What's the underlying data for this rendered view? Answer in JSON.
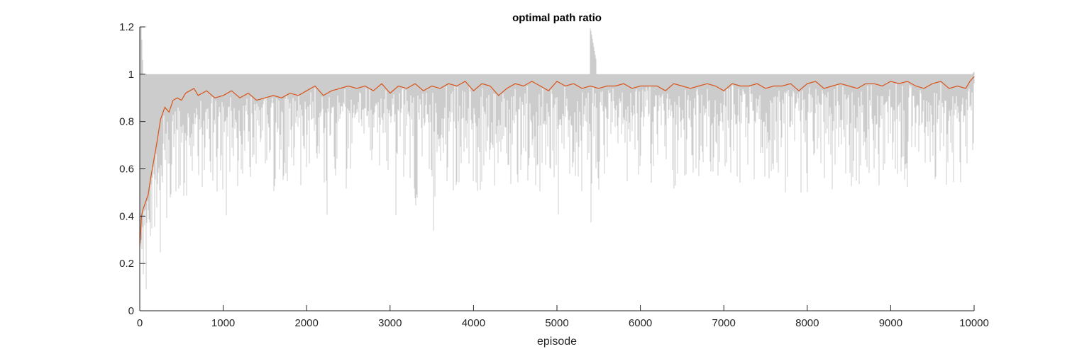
{
  "chart_data": {
    "type": "line",
    "title": "optimal path ratio",
    "xlabel": "episode",
    "ylabel": "",
    "xlim": [
      0,
      10000
    ],
    "ylim": [
      0,
      1.2
    ],
    "xticks": [
      0,
      1000,
      2000,
      3000,
      4000,
      5000,
      6000,
      7000,
      8000,
      9000,
      10000
    ],
    "xtick_labels": [
      "0",
      "1000",
      "2000",
      "3000",
      "4000",
      "5000",
      "6000",
      "7000",
      "8000",
      "9000",
      "10000"
    ],
    "yticks": [
      0,
      0.2,
      0.4,
      0.6,
      0.8,
      1,
      1.2
    ],
    "ytick_labels": [
      "0",
      "0.2",
      "0.4",
      "0.6",
      "0.8",
      "1",
      "1.2"
    ],
    "grid": false,
    "legend": "none",
    "series": [
      {
        "kind": "raw",
        "color": "#cccccc",
        "x": [
          0,
          20,
          40,
          60,
          80,
          100,
          130,
          160,
          200,
          250,
          300,
          350,
          400,
          450,
          500,
          550,
          600,
          700,
          800,
          900,
          1000,
          1050,
          1100,
          1200,
          1300,
          1400,
          1500,
          1600,
          1700,
          1800,
          1900,
          2000,
          2100,
          2200,
          2250,
          2300,
          2400,
          2500,
          2600,
          2700,
          2800,
          2900,
          3000,
          3080,
          3100,
          3200,
          3300,
          3400,
          3500,
          3530,
          3600,
          3700,
          3800,
          3900,
          4000,
          4100,
          4200,
          4300,
          4400,
          4500,
          4600,
          4700,
          4800,
          4900,
          5000,
          5020,
          5100,
          5200,
          5300,
          5390,
          5400,
          5500,
          5600,
          5700,
          5800,
          5900,
          6000,
          6100,
          6200,
          6300,
          6400,
          6500,
          6600,
          6700,
          6800,
          6900,
          7000,
          7100,
          7200,
          7300,
          7400,
          7500,
          7600,
          7700,
          7800,
          7900,
          7920,
          8000,
          8100,
          8200,
          8300,
          8400,
          8500,
          8600,
          8700,
          8800,
          8900,
          9000,
          9100,
          9200,
          9300,
          9400,
          9500,
          9600,
          9700,
          9800,
          9900,
          10000
        ],
        "min": [
          0.07,
          0.05,
          0.04,
          0.1,
          0.05,
          0.15,
          0.1,
          0.2,
          0.2,
          0.22,
          0.33,
          0.25,
          0.3,
          0.45,
          0.5,
          0.4,
          0.55,
          0.45,
          0.6,
          0.5,
          0.5,
          0.33,
          0.6,
          0.5,
          0.4,
          0.5,
          0.6,
          0.5,
          0.55,
          0.5,
          0.5,
          0.6,
          0.5,
          0.55,
          0.27,
          0.5,
          0.6,
          0.4,
          0.6,
          0.5,
          0.5,
          0.6,
          0.5,
          0.23,
          0.6,
          0.5,
          0.33,
          0.5,
          0.5,
          0.26,
          0.6,
          0.5,
          0.5,
          0.6,
          0.5,
          0.5,
          0.6,
          0.33,
          0.5,
          0.5,
          0.6,
          0.5,
          0.5,
          0.6,
          0.5,
          0.33,
          0.6,
          0.5,
          0.5,
          0.6,
          0.33,
          0.5,
          0.6,
          0.5,
          0.5,
          0.6,
          0.5,
          0.5,
          0.6,
          0.5,
          0.5,
          0.6,
          0.5,
          0.5,
          0.6,
          0.5,
          0.6,
          0.5,
          0.5,
          0.6,
          0.5,
          0.5,
          0.6,
          0.5,
          0.5,
          0.6,
          0.4,
          0.5,
          0.6,
          0.5,
          0.5,
          0.6,
          0.5,
          0.5,
          0.6,
          0.5,
          0.5,
          0.6,
          0.5,
          0.5,
          0.6,
          0.5,
          0.5,
          0.6,
          0.5,
          0.5,
          0.6,
          0.64
        ],
        "max": [
          1.2,
          1.2,
          1,
          1,
          1,
          1,
          1,
          1,
          1,
          1,
          1,
          1,
          1,
          1,
          1,
          1,
          1,
          1,
          1,
          1,
          1,
          1,
          1,
          1,
          1,
          1,
          1,
          1,
          1,
          1,
          1,
          1,
          1,
          1,
          1,
          1,
          1,
          1,
          1,
          1,
          1,
          1,
          1,
          1,
          1,
          1,
          1,
          1,
          1,
          1,
          1,
          1,
          1,
          1,
          1,
          1,
          1,
          1,
          1,
          1,
          1,
          1,
          1,
          1,
          1,
          1,
          1,
          1,
          1,
          1,
          1.2,
          1,
          1,
          1,
          1,
          1,
          1,
          1,
          1,
          1,
          1,
          1,
          1,
          1,
          1,
          1,
          1,
          1,
          1,
          1,
          1,
          1,
          1,
          1,
          1,
          1,
          1,
          1,
          1,
          1,
          1,
          1,
          1,
          1,
          1,
          1,
          1,
          1,
          1,
          1,
          1,
          1,
          1,
          1,
          1,
          1,
          1,
          1
        ]
      },
      {
        "kind": "moving-average",
        "color": "#d95319",
        "x": [
          0,
          20,
          40,
          60,
          80,
          100,
          130,
          160,
          200,
          250,
          300,
          350,
          400,
          450,
          500,
          550,
          600,
          650,
          700,
          800,
          900,
          1000,
          1100,
          1200,
          1300,
          1400,
          1500,
          1600,
          1700,
          1800,
          1900,
          2000,
          2100,
          2200,
          2300,
          2400,
          2500,
          2600,
          2700,
          2800,
          2900,
          3000,
          3100,
          3200,
          3300,
          3400,
          3500,
          3600,
          3700,
          3800,
          3900,
          4000,
          4100,
          4200,
          4300,
          4400,
          4500,
          4600,
          4700,
          4800,
          4900,
          5000,
          5100,
          5200,
          5300,
          5400,
          5500,
          5600,
          5700,
          5800,
          5900,
          6000,
          6100,
          6200,
          6300,
          6400,
          6500,
          6600,
          6700,
          6800,
          6900,
          7000,
          7100,
          7200,
          7300,
          7400,
          7500,
          7600,
          7700,
          7800,
          7900,
          8000,
          8100,
          8200,
          8300,
          8400,
          8500,
          8600,
          8700,
          8800,
          8900,
          9000,
          9100,
          9200,
          9300,
          9400,
          9500,
          9600,
          9700,
          9800,
          9900,
          9950,
          10000
        ],
        "y": [
          0.27,
          0.4,
          0.43,
          0.45,
          0.47,
          0.49,
          0.56,
          0.62,
          0.7,
          0.81,
          0.86,
          0.84,
          0.89,
          0.9,
          0.89,
          0.92,
          0.93,
          0.94,
          0.91,
          0.93,
          0.9,
          0.91,
          0.93,
          0.9,
          0.92,
          0.89,
          0.9,
          0.91,
          0.9,
          0.92,
          0.91,
          0.93,
          0.95,
          0.91,
          0.93,
          0.94,
          0.95,
          0.94,
          0.95,
          0.93,
          0.96,
          0.92,
          0.95,
          0.94,
          0.96,
          0.93,
          0.95,
          0.94,
          0.96,
          0.95,
          0.97,
          0.93,
          0.96,
          0.95,
          0.91,
          0.94,
          0.96,
          0.95,
          0.97,
          0.95,
          0.93,
          0.97,
          0.95,
          0.96,
          0.94,
          0.95,
          0.94,
          0.95,
          0.95,
          0.96,
          0.94,
          0.95,
          0.95,
          0.95,
          0.93,
          0.96,
          0.95,
          0.94,
          0.95,
          0.96,
          0.95,
          0.93,
          0.96,
          0.95,
          0.95,
          0.96,
          0.94,
          0.95,
          0.95,
          0.96,
          0.93,
          0.96,
          0.97,
          0.94,
          0.95,
          0.96,
          0.95,
          0.94,
          0.96,
          0.96,
          0.95,
          0.97,
          0.96,
          0.97,
          0.95,
          0.94,
          0.96,
          0.97,
          0.94,
          0.95,
          0.94,
          0.97,
          0.99
        ]
      }
    ]
  }
}
